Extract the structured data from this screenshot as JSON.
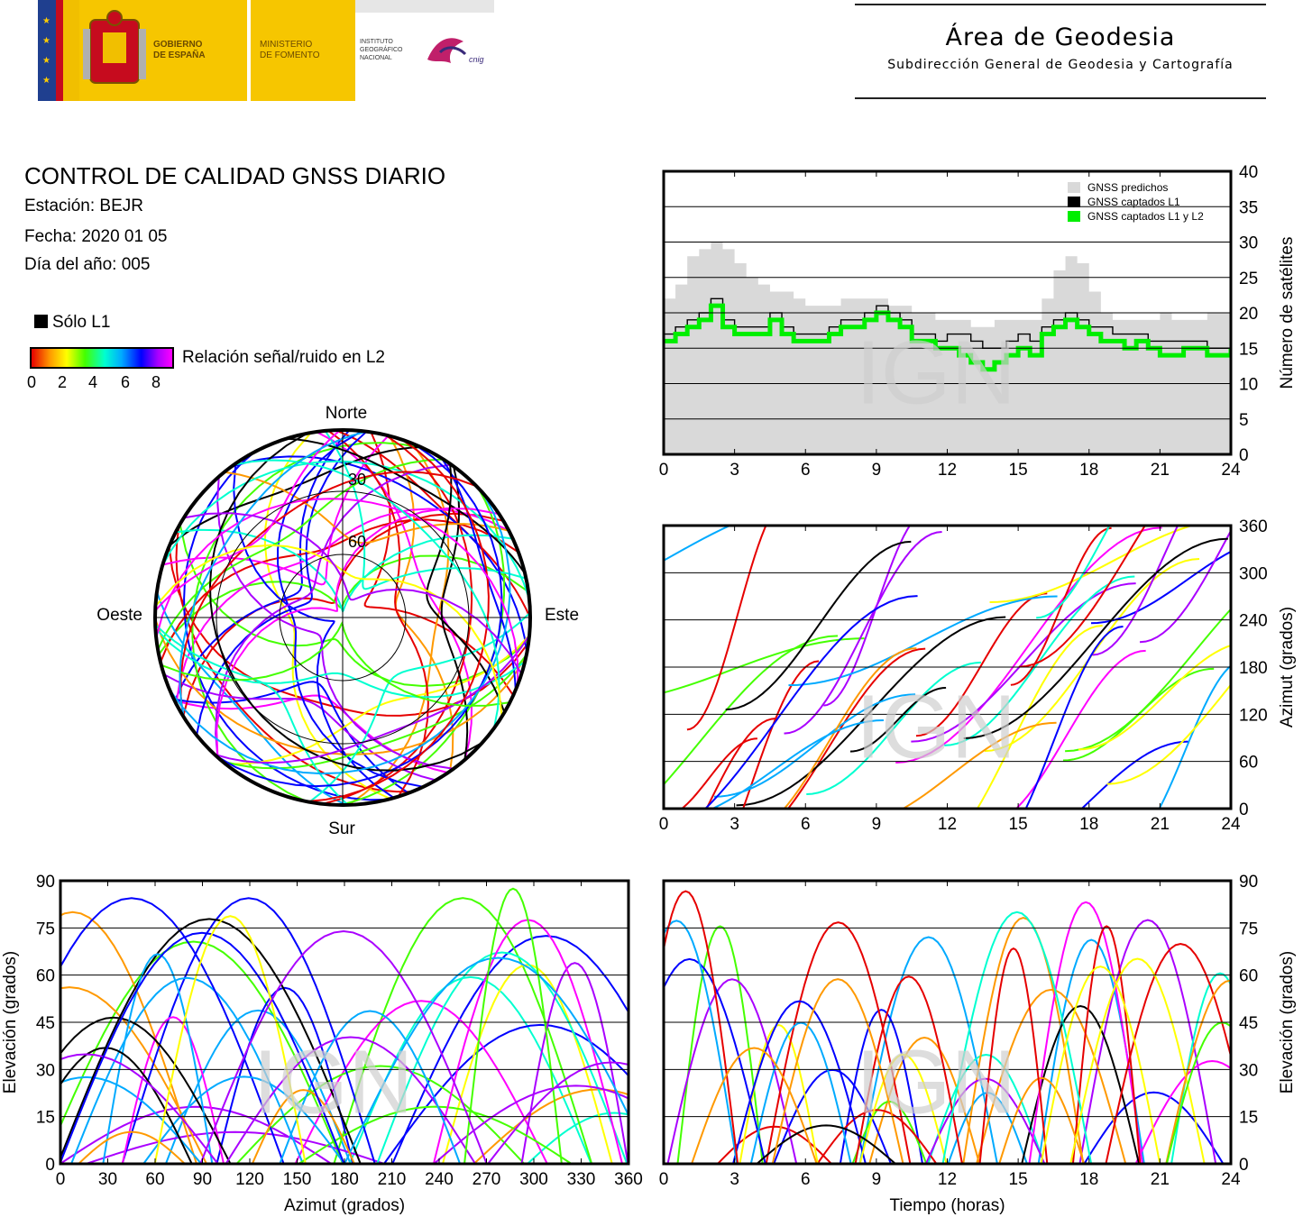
{
  "header": {
    "gov1": "GOBIERNO",
    "gov2": "DE ESPAÑA",
    "min1": "MINISTERIO",
    "min2": "DE FOMENTO",
    "inst1": "INSTITUTO",
    "inst2": "GEOGRÁFICO",
    "inst3": "NACIONAL",
    "cnig": "cnig",
    "area_title": "Área de Geodesia",
    "area_subtitle": "Subdirección General de Geodesia y Cartografía"
  },
  "report": {
    "title": "CONTROL DE CALIDAD GNSS DIARIO",
    "station": "Estación: BEJR",
    "date": "Fecha: 2020 01 05",
    "doy": "Día del año: 005",
    "legend_l1": "Sólo L1",
    "legend_snr": "Relación señal/ruido en L2",
    "snr_ticks": [
      "0",
      "2",
      "4",
      "6",
      "8"
    ]
  },
  "watermark": "IGN",
  "colors": {
    "predicted": "#d9d9d9",
    "l1": "#000000",
    "l1l2": "#00ee00",
    "snr_scale": [
      "#e60000",
      "#ff9900",
      "#ffff00",
      "#44ff00",
      "#00ffd0",
      "#00aaff",
      "#0000ff",
      "#aa00ff",
      "#ff00ff"
    ]
  },
  "chart_data": [
    {
      "type": "line",
      "id": "sat_count",
      "xlabel": "",
      "ylabel": "Número de satélites",
      "xlim": [
        0,
        24
      ],
      "ylim": [
        0,
        40
      ],
      "xticks": [
        "0",
        "3",
        "6",
        "9",
        "12",
        "15",
        "18",
        "21",
        "24"
      ],
      "yticks": [
        "0",
        "5",
        "10",
        "15",
        "20",
        "25",
        "30",
        "35",
        "40"
      ],
      "grid": true,
      "legend_position": "top-right",
      "series": [
        {
          "name": "GNSS predichos",
          "style": "filled-step",
          "x": [
            0,
            0.5,
            1,
            1.5,
            2,
            2.5,
            3,
            3.5,
            4,
            4.5,
            5,
            5.5,
            6,
            6.5,
            7,
            7.5,
            8,
            8.5,
            9,
            9.5,
            10,
            10.5,
            11,
            11.5,
            12,
            12.5,
            13,
            13.5,
            14,
            14.5,
            15,
            15.5,
            16,
            16.5,
            17,
            17.5,
            18,
            18.5,
            19,
            19.5,
            20,
            20.5,
            21,
            21.5,
            22,
            22.5,
            23,
            23.5,
            24
          ],
          "y": [
            22,
            24,
            28,
            29,
            30,
            29,
            27,
            25,
            24,
            23,
            23,
            22,
            21,
            21,
            21,
            22,
            22,
            22,
            22,
            21,
            21,
            20,
            20,
            19,
            19,
            19,
            18,
            18,
            19,
            19,
            19,
            19,
            22,
            26,
            28,
            27,
            23,
            20,
            19,
            19,
            19,
            19,
            20,
            19,
            19,
            19,
            20,
            20,
            19
          ]
        },
        {
          "name": "GNSS captados L1",
          "style": "step",
          "x": [
            0,
            0.5,
            1,
            1.5,
            2,
            2.5,
            3,
            3.5,
            4,
            4.5,
            5,
            5.5,
            6,
            6.5,
            7,
            7.5,
            8,
            8.5,
            9,
            9.5,
            10,
            10.5,
            11,
            11.5,
            12,
            12.5,
            13,
            13.5,
            14,
            14.5,
            15,
            15.5,
            16,
            16.5,
            17,
            17.5,
            18,
            18.5,
            19,
            19.5,
            20,
            20.5,
            21,
            21.5,
            22,
            22.5,
            23,
            23.5,
            24
          ],
          "y": [
            17,
            18,
            19,
            20,
            22,
            19,
            18,
            18,
            18,
            20,
            18,
            17,
            17,
            17,
            18,
            19,
            19,
            20,
            21,
            20,
            19,
            17,
            17,
            16,
            17,
            17,
            16,
            15,
            15,
            16,
            17,
            16,
            18,
            19,
            20,
            19,
            18,
            18,
            17,
            17,
            17,
            16,
            16,
            16,
            16,
            16,
            15,
            15,
            16
          ]
        },
        {
          "name": "GNSS captados L1 y L2",
          "style": "step",
          "x": [
            0,
            0.5,
            1,
            1.5,
            2,
            2.5,
            3,
            3.5,
            4,
            4.5,
            5,
            5.5,
            6,
            6.5,
            7,
            7.5,
            8,
            8.5,
            9,
            9.5,
            10,
            10.5,
            11,
            11.5,
            12,
            12.5,
            13,
            13.5,
            14,
            14.5,
            15,
            15.5,
            16,
            16.5,
            17,
            17.5,
            18,
            18.5,
            19,
            19.5,
            20,
            20.5,
            21,
            21.5,
            22,
            22.5,
            23,
            23.5,
            24
          ],
          "y": [
            16,
            17,
            18,
            19,
            21,
            18,
            17,
            17,
            17,
            19,
            17,
            16,
            16,
            16,
            17,
            18,
            18,
            19,
            20,
            19,
            18,
            16,
            16,
            15,
            15,
            14,
            13,
            12,
            13,
            14,
            15,
            14,
            17,
            18,
            19,
            18,
            17,
            16,
            16,
            15,
            16,
            15,
            14,
            14,
            15,
            15,
            14,
            14,
            15
          ]
        }
      ]
    },
    {
      "type": "scatter",
      "id": "azimuth_time",
      "xlabel": "",
      "ylabel": "Azimut (grados)",
      "xlim": [
        0,
        24
      ],
      "ylim": [
        0,
        360
      ],
      "xticks": [
        "0",
        "3",
        "6",
        "9",
        "12",
        "15",
        "18",
        "21",
        "24"
      ],
      "yticks": [
        "0",
        "60",
        "120",
        "180",
        "240",
        "300",
        "360"
      ],
      "grid": true
    },
    {
      "type": "scatter",
      "id": "elevation_azimuth",
      "xlabel": "Azimut (grados)",
      "ylabel": "Elevación (grados)",
      "xlim": [
        0,
        360
      ],
      "ylim": [
        0,
        90
      ],
      "xticks": [
        "0",
        "30",
        "60",
        "90",
        "120",
        "150",
        "180",
        "210",
        "240",
        "270",
        "300",
        "330",
        "360"
      ],
      "yticks": [
        "0",
        "15",
        "30",
        "45",
        "60",
        "75",
        "90"
      ],
      "grid": true
    },
    {
      "type": "scatter",
      "id": "elevation_time",
      "xlabel": "Tiempo (horas)",
      "ylabel": "Elevación (grados)",
      "xlim": [
        0,
        24
      ],
      "ylim": [
        0,
        90
      ],
      "xticks": [
        "0",
        "3",
        "6",
        "9",
        "12",
        "15",
        "18",
        "21",
        "24"
      ],
      "yticks": [
        "0",
        "15",
        "30",
        "45",
        "60",
        "75",
        "90"
      ],
      "grid": true
    },
    {
      "type": "scatter",
      "id": "skyplot",
      "directions": {
        "north": "Norte",
        "south": "Sur",
        "east": "Este",
        "west": "Oeste"
      },
      "rings": [
        "30",
        "60"
      ]
    }
  ]
}
